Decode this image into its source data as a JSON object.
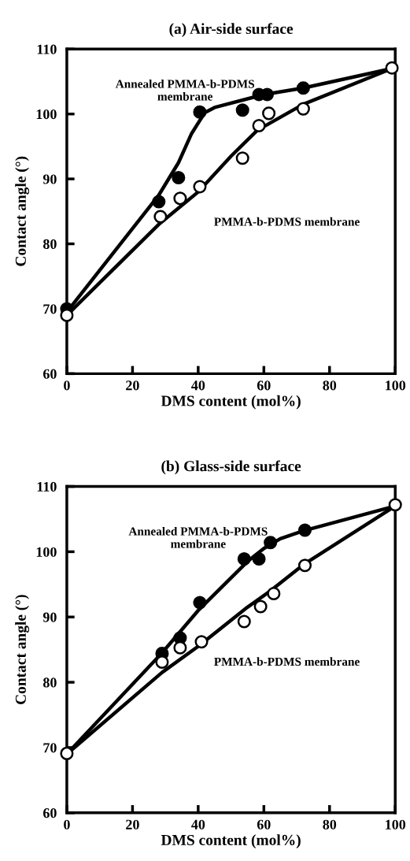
{
  "chart_data": [
    {
      "type": "scatter",
      "title": "(a) Air-side surface",
      "xlabel": "DMS content (mol%)",
      "ylabel": "Contact angle (°)",
      "xlim": [
        0,
        100
      ],
      "ylim": [
        60,
        110
      ],
      "xticks": [
        0,
        20,
        40,
        60,
        80,
        100
      ],
      "yticks": [
        60,
        70,
        80,
        90,
        100,
        110
      ],
      "grid": false,
      "legend": false,
      "marker": "circle",
      "series": [
        {
          "type": "line",
          "color": "#000000",
          "marker": "none",
          "line_style": "solid",
          "x": [
            0,
            28,
            34,
            38,
            42,
            45,
            60,
            72,
            99
          ],
          "values": [
            69.5,
            87.5,
            92.5,
            97,
            100.2,
            101,
            103,
            104,
            107
          ]
        },
        {
          "type": "line",
          "color": "#000000",
          "marker": "none",
          "line_style": "solid",
          "x": [
            0,
            28,
            40,
            50,
            58,
            65,
            72,
            99
          ],
          "values": [
            69,
            83,
            88,
            93.5,
            97.5,
            99.5,
            101.5,
            107
          ]
        },
        {
          "color": "#000000",
          "x": [
            0,
            28,
            34,
            40.5,
            53.5,
            58.5,
            61,
            72
          ],
          "values": [
            70,
            86.5,
            90.2,
            100.3,
            100.6,
            103,
            103,
            104
          ]
        },
        {
          "color": "#ffffff",
          "x": [
            0,
            28.5,
            34.5,
            40.5,
            53.5,
            58.5,
            61.5,
            72,
            99
          ],
          "values": [
            69,
            84.2,
            87,
            88.8,
            93.2,
            98.2,
            100.1,
            100.8,
            107.1
          ]
        }
      ],
      "annotations": [
        "Annealed PMMA-b-PDMS\nmembrane",
        "PMMA-b-PDMS membrane"
      ]
    },
    {
      "type": "scatter",
      "title": "(b) Glass-side surface",
      "xlabel": "DMS content (mol%)",
      "ylabel": "Contact angle (°)",
      "xlim": [
        0,
        100
      ],
      "ylim": [
        60,
        110
      ],
      "xticks": [
        0,
        20,
        40,
        60,
        80,
        100
      ],
      "yticks": [
        60,
        70,
        80,
        90,
        100,
        110
      ],
      "grid": false,
      "legend": false,
      "marker": "circle",
      "series": [
        {
          "type": "line",
          "color": "#000000",
          "marker": "none",
          "line_style": "solid",
          "x": [
            0,
            29,
            40,
            55,
            60,
            65,
            72,
            100
          ],
          "values": [
            69,
            84.5,
            91,
            98.5,
            100.5,
            102,
            103.2,
            107
          ]
        },
        {
          "type": "line",
          "color": "#000000",
          "marker": "none",
          "line_style": "solid",
          "x": [
            0,
            29,
            40,
            55,
            62,
            72,
            100
          ],
          "values": [
            69,
            81.5,
            85.5,
            91.5,
            94,
            98,
            107
          ]
        },
        {
          "color": "#000000",
          "x": [
            29,
            34.5,
            40.5,
            54,
            58.5,
            62,
            72.5
          ],
          "values": [
            84.4,
            86.8,
            92.2,
            98.9,
            98.9,
            101.4,
            103.3
          ]
        },
        {
          "color": "#ffffff",
          "x": [
            0,
            29,
            34.5,
            41,
            54,
            59,
            63,
            72.5,
            100
          ],
          "values": [
            69.1,
            83.1,
            85.3,
            86.2,
            89.3,
            91.6,
            93.6,
            97.9,
            107.2
          ]
        }
      ],
      "annotations": [
        "Annealed PMMA-b-PDMS\nmembrane",
        "PMMA-b-PDMS membrane"
      ]
    }
  ]
}
